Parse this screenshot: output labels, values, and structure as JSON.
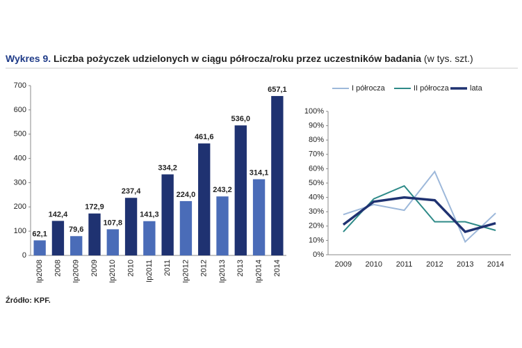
{
  "title_label": "Wykres 9.",
  "title": "Liczba pożyczek udzielonych w ciągu półrocza/roku przez uczestników badania",
  "title_unit": "(w tys. szt.)",
  "source": "Źródło: KPF.",
  "chart_data": [
    {
      "type": "bar",
      "categories": [
        "Ip2008",
        "2008",
        "Ip2009",
        "2009",
        "Ip2010",
        "2010",
        "Ip2011",
        "2011",
        "Ip2012",
        "2012",
        "Ip2013",
        "2013",
        "Ip2014",
        "2014"
      ],
      "values": [
        62.1,
        142.4,
        79.6,
        172.9,
        107.8,
        237.4,
        141.3,
        334.2,
        224.0,
        461.6,
        243.2,
        536.0,
        314.1,
        657.1
      ],
      "value_labels": [
        "62,1",
        "142,4",
        "79,6",
        "172,9",
        "107,8",
        "237,4",
        "141,3",
        "334,2",
        "224,0",
        "461,6",
        "243,2",
        "536,0",
        "314,1",
        "657,1"
      ],
      "colors": [
        "#4a6cb8",
        "#1f3271",
        "#4a6cb8",
        "#1f3271",
        "#4a6cb8",
        "#1f3271",
        "#4a6cb8",
        "#1f3271",
        "#4a6cb8",
        "#1f3271",
        "#4a6cb8",
        "#1f3271",
        "#4a6cb8",
        "#1f3271"
      ],
      "ylim": [
        0,
        700
      ],
      "yticks": [
        0,
        100,
        200,
        300,
        400,
        500,
        600,
        700
      ],
      "grid": false
    },
    {
      "type": "line",
      "categories": [
        "2009",
        "2010",
        "2011",
        "2012",
        "2013",
        "2014"
      ],
      "series": [
        {
          "name": "I półrocza",
          "color": "#9db8da",
          "values": [
            28,
            35,
            31,
            58,
            9,
            29
          ]
        },
        {
          "name": "II półrocza",
          "color": "#2e8a88",
          "values": [
            16,
            39,
            48,
            23,
            23,
            17
          ]
        },
        {
          "name": "lata",
          "color": "#1f3271",
          "values": [
            21,
            37,
            40,
            38,
            16,
            22
          ]
        }
      ],
      "ylim": [
        0,
        100
      ],
      "yticks": [
        {
          "value": 0,
          "label": "0%"
        },
        {
          "value": 10,
          "label": "10%"
        },
        {
          "value": 20,
          "label": "20%"
        },
        {
          "value": 30,
          "label": "30%"
        },
        {
          "value": 40,
          "label": "40%"
        },
        {
          "value": 50,
          "label": "50%"
        },
        {
          "value": 60,
          "label": "60%"
        },
        {
          "value": 70,
          "label": "70%"
        },
        {
          "value": 80,
          "label": "80%"
        },
        {
          "value": 90,
          "label": "90%"
        },
        {
          "value": 100,
          "label": "100%"
        }
      ],
      "grid": false,
      "legend": "top"
    }
  ]
}
